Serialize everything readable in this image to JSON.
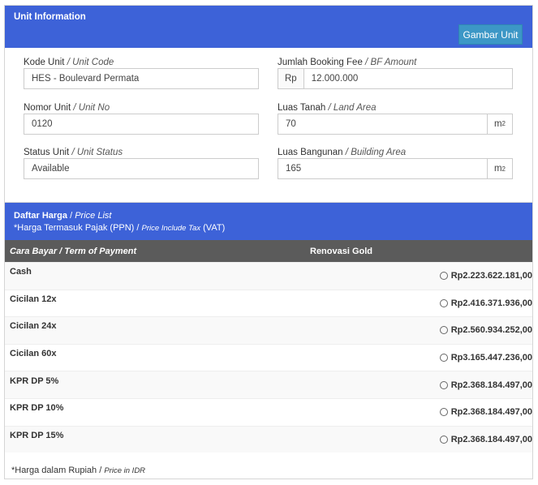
{
  "separator": "/",
  "unit_info": {
    "title": "Unit Information",
    "button": "Gambar Unit",
    "fields": [
      {
        "label": "Kode Unit",
        "label_en": "Unit Code",
        "value": "HES - Boulevard Permata"
      },
      {
        "label": "Jumlah Booking Fee",
        "label_en": "BF Amount",
        "prefix": "Rp",
        "value": "12.000.000"
      },
      {
        "label": "Nomor Unit",
        "label_en": "Unit No",
        "value": "0120"
      },
      {
        "label": "Luas Tanah",
        "label_en": "Land Area",
        "value": "70",
        "unit": "m",
        "unit_exp": "2"
      },
      {
        "label": "Status Unit",
        "label_en": "Unit Status",
        "value": "Available"
      },
      {
        "label": "Luas Bangunan",
        "label_en": "Building Area",
        "value": "165",
        "unit": "m",
        "unit_exp": "2"
      }
    ]
  },
  "price_list": {
    "title": "Daftar Harga",
    "title_en": "Price List",
    "tax_note": "*Harga Termasuk Pajak (PPN)",
    "tax_note_en": "Price Include Tax",
    "tax_note_suffix": "(VAT)",
    "header": {
      "term": "Cara Bayar",
      "term_en": "Term of Payment",
      "product": "Renovasi Gold"
    },
    "rows": [
      {
        "term": "Cash",
        "price": "Rp2.223.622.181,00"
      },
      {
        "term": "Cicilan 12x",
        "price": "Rp2.416.371.936,00"
      },
      {
        "term": "Cicilan 24x",
        "price": "Rp2.560.934.252,00"
      },
      {
        "term": "Cicilan 60x",
        "price": "Rp3.165.447.236,00"
      },
      {
        "term": "KPR DP 5%",
        "price": "Rp2.368.184.497,00"
      },
      {
        "term": "KPR DP 10%",
        "price": "Rp2.368.184.497,00"
      },
      {
        "term": "KPR DP 15%",
        "price": "Rp2.368.184.497,00"
      }
    ],
    "footnote": "*Harga dalam Rupiah",
    "footnote_en": "Price in IDR"
  }
}
